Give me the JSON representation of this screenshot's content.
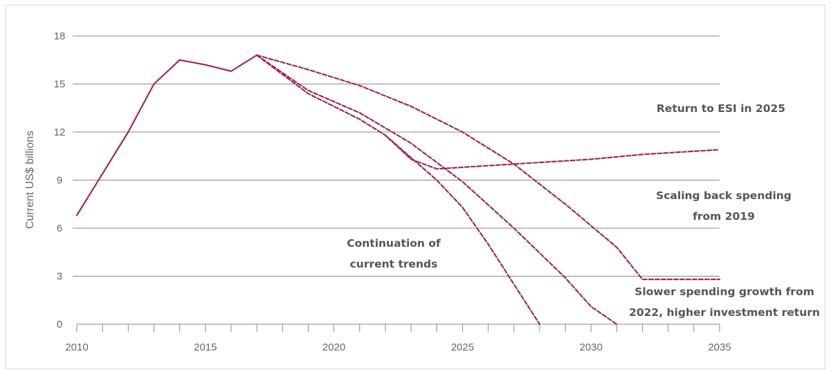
{
  "chart_data": {
    "type": "line",
    "title": "",
    "xlabel": "",
    "ylabel": "Current US$ billions",
    "xlim": [
      2010,
      2035
    ],
    "ylim": [
      0,
      18
    ],
    "x_ticks": [
      "2010",
      "2015",
      "2020",
      "2025",
      "2030",
      "2035"
    ],
    "y_ticks": [
      "0",
      "3",
      "6",
      "9",
      "12",
      "15",
      "18"
    ],
    "grid": "horizontal",
    "legend": "none",
    "colors": {
      "series": "#a3284e",
      "grid": "#888888",
      "axis_text": "#666666",
      "annotation": "#555555"
    },
    "series": [
      {
        "style": "solid",
        "points": [
          [
            2010,
            6.8
          ],
          [
            2012,
            12.0
          ],
          [
            2013,
            15.0
          ],
          [
            2014,
            16.5
          ],
          [
            2015,
            16.2
          ],
          [
            2016,
            15.8
          ],
          [
            2017,
            16.8
          ]
        ]
      },
      {
        "style": "dashed",
        "points": [
          [
            2017,
            16.8
          ],
          [
            2019,
            15.9
          ],
          [
            2021,
            14.9
          ],
          [
            2023,
            13.6
          ],
          [
            2025,
            12.0
          ],
          [
            2027,
            10.0
          ],
          [
            2029,
            7.5
          ],
          [
            2031,
            4.8
          ],
          [
            2032,
            2.8
          ],
          [
            2035,
            2.8
          ]
        ]
      },
      {
        "style": "dashed",
        "points": [
          [
            2017,
            16.8
          ],
          [
            2019,
            14.6
          ],
          [
            2021,
            13.2
          ],
          [
            2023,
            11.3
          ],
          [
            2025,
            8.9
          ],
          [
            2027,
            6.0
          ],
          [
            2029,
            2.9
          ],
          [
            2030,
            1.1
          ],
          [
            2031,
            0.0
          ]
        ]
      },
      {
        "style": "dashed",
        "points": [
          [
            2017,
            16.8
          ],
          [
            2019,
            14.4
          ],
          [
            2021,
            12.8
          ],
          [
            2022,
            11.8
          ],
          [
            2023,
            10.3
          ],
          [
            2024,
            9.7
          ],
          [
            2025,
            9.8
          ],
          [
            2027,
            10.0
          ],
          [
            2030,
            10.3
          ],
          [
            2032,
            10.6
          ],
          [
            2035,
            10.9
          ]
        ]
      },
      {
        "style": "dashed",
        "points": [
          [
            2022,
            11.8
          ],
          [
            2024,
            9.0
          ],
          [
            2025,
            7.3
          ],
          [
            2026,
            5.0
          ],
          [
            2027,
            2.5
          ],
          [
            2028,
            0.0
          ]
        ]
      }
    ],
    "annotations": [
      {
        "lines": [
          "Return to ESI in 2025"
        ]
      },
      {
        "lines": [
          "Scaling back spending",
          "from 2019"
        ]
      },
      {
        "lines": [
          "Continuation of",
          "current trends"
        ]
      },
      {
        "lines": [
          "Slower spending growth from",
          "2022, higher investment return"
        ]
      }
    ]
  }
}
